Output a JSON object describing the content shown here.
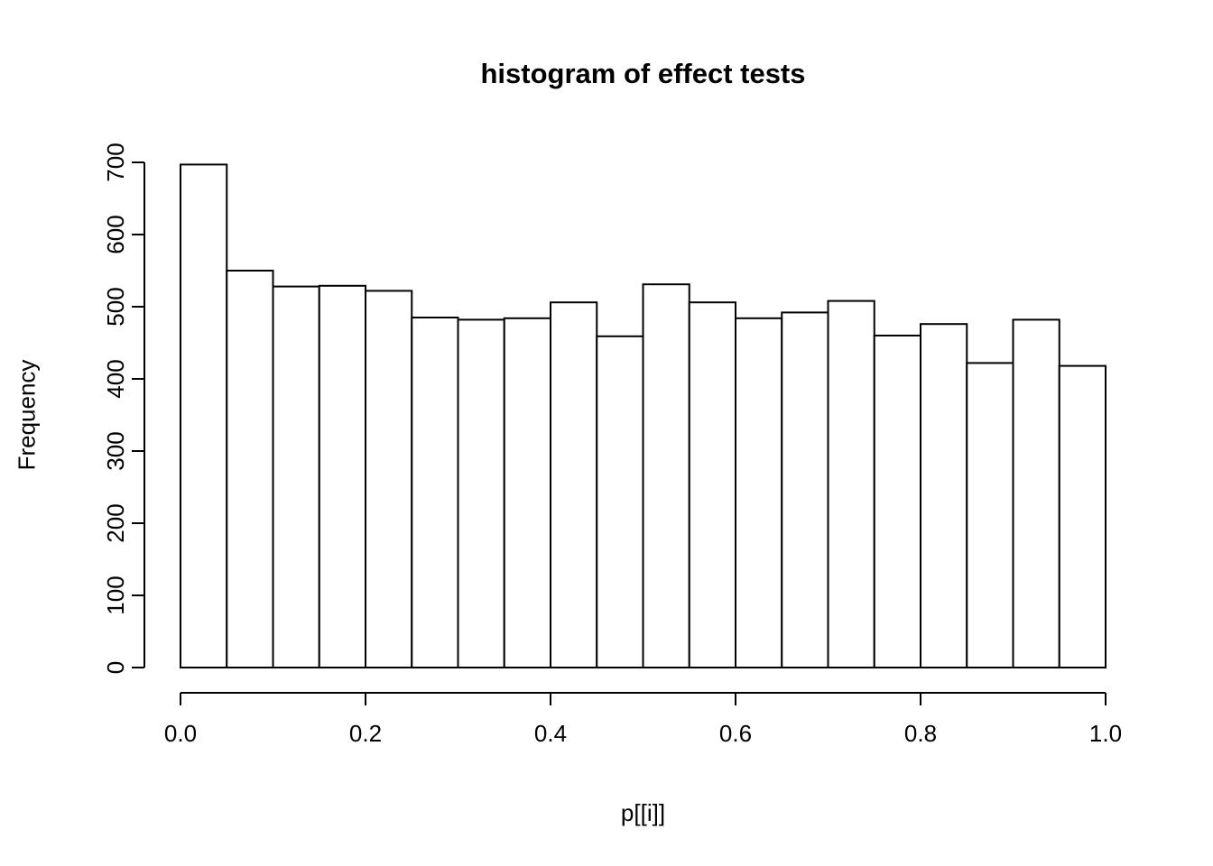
{
  "chart_data": {
    "type": "bar",
    "subtype": "histogram",
    "title": "histogram of effect tests",
    "xlabel": "p[[i]]",
    "ylabel": "Frequency",
    "xlim": [
      0,
      1
    ],
    "ylim": [
      0,
      700
    ],
    "bin_width": 0.05,
    "bin_edges": [
      0,
      0.05,
      0.1,
      0.15,
      0.2,
      0.25,
      0.3,
      0.35,
      0.4,
      0.45,
      0.5,
      0.55,
      0.6,
      0.65,
      0.7,
      0.75,
      0.8,
      0.85,
      0.9,
      0.95,
      1.0
    ],
    "counts": [
      697,
      550,
      528,
      529,
      522,
      485,
      482,
      484,
      506,
      459,
      531,
      506,
      484,
      492,
      508,
      460,
      476,
      422,
      482,
      418
    ],
    "xticks": [
      0,
      0.2,
      0.4,
      0.6,
      0.8,
      1.0
    ],
    "xtick_labels": [
      "0.0",
      "0.2",
      "0.4",
      "0.6",
      "0.8",
      "1.0"
    ],
    "yticks": [
      0,
      100,
      200,
      300,
      400,
      500,
      600,
      700
    ],
    "ytick_labels": [
      "0",
      "100",
      "200",
      "300",
      "400",
      "500",
      "600",
      "700"
    ],
    "grid": false,
    "legend": false,
    "bar_fill": "#ffffff",
    "bar_stroke": "#000000",
    "axis_color": "#000000",
    "text_color": "#000000",
    "background_color": "#ffffff"
  }
}
